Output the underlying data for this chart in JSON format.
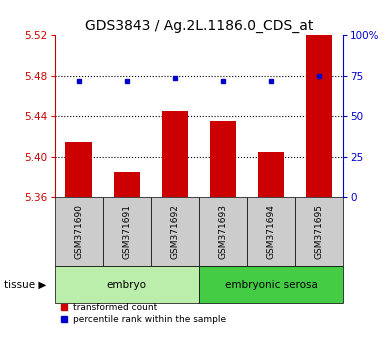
{
  "title": "GDS3843 / Ag.2L.1186.0_CDS_at",
  "samples": [
    "GSM371690",
    "GSM371691",
    "GSM371692",
    "GSM371693",
    "GSM371694",
    "GSM371695"
  ],
  "red_values": [
    5.415,
    5.385,
    5.445,
    5.435,
    5.405,
    5.52
  ],
  "blue_values": [
    72,
    72,
    74,
    72,
    72,
    75
  ],
  "ylim_left": [
    5.36,
    5.52
  ],
  "ylim_right": [
    0,
    100
  ],
  "yticks_left": [
    5.36,
    5.4,
    5.44,
    5.48,
    5.52
  ],
  "yticks_right": [
    0,
    25,
    50,
    75,
    100
  ],
  "ytick_labels_right": [
    "0",
    "25",
    "50",
    "75",
    "100%"
  ],
  "tissue_groups": [
    {
      "label": "embryo",
      "start": 0,
      "end": 3,
      "color": "#bbeeaa"
    },
    {
      "label": "embryonic serosa",
      "start": 3,
      "end": 6,
      "color": "#44cc44"
    }
  ],
  "bar_color": "#cc0000",
  "dot_color": "#0000cc",
  "grid_color": "#000000",
  "axis_color_left": "#cc0000",
  "axis_color_right": "#0000cc",
  "bar_width": 0.55,
  "title_fontsize": 10,
  "tick_fontsize": 7.5,
  "sample_fontsize": 6.5,
  "tissue_fontsize": 7.5,
  "legend_fontsize": 6.5,
  "legend_label_red": "transformed count",
  "legend_label_blue": "percentile rank within the sample",
  "tissue_label": "tissue",
  "sample_box_color": "#cccccc",
  "background_color": "#ffffff"
}
